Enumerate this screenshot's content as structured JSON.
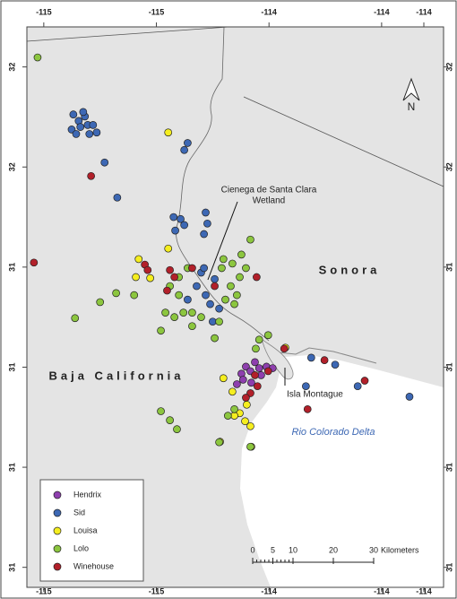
{
  "chart_data": {
    "type": "scatter",
    "xlim": [
      -115.06,
      -113.58
    ],
    "ylim": [
      30.76,
      31.88
    ],
    "xticks": [
      {
        "value": -115.0,
        "label": "-115"
      },
      {
        "value": -114.6,
        "label": "-115"
      },
      {
        "value": -114.2,
        "label": "-114"
      },
      {
        "value": -113.8,
        "label": "-114"
      },
      {
        "value": -113.65,
        "label": "-114"
      }
    ],
    "yticks": [
      {
        "value": 31.8,
        "label": "32"
      },
      {
        "value": 31.6,
        "label": "32"
      },
      {
        "value": 31.4,
        "label": "31"
      },
      {
        "value": 31.2,
        "label": "31"
      },
      {
        "value": 31.0,
        "label": "31"
      },
      {
        "value": 30.8,
        "label": "31"
      }
    ],
    "legend": "lower left",
    "series": [
      {
        "name": "Hendrix",
        "color": "#8e3fae",
        "x": [
          -114.282,
          -114.25,
          -114.298,
          -114.266,
          -114.235,
          -114.292,
          -114.263,
          -114.228,
          -114.209,
          -114.187,
          -114.314
        ],
        "y": [
          31.201,
          31.21,
          31.187,
          31.192,
          31.198,
          31.175,
          31.169,
          31.184,
          31.201,
          31.198,
          31.166
        ]
      },
      {
        "name": "Sid",
        "color": "#3d68b4",
        "x": [
          -114.895,
          -114.876,
          -114.854,
          -114.844,
          -114.87,
          -114.825,
          -114.901,
          -114.812,
          -114.885,
          -114.838,
          -114.86,
          -114.784,
          -114.739,
          -114.489,
          -114.501,
          -114.539,
          -114.514,
          -114.501,
          -114.533,
          -114.425,
          -114.419,
          -114.431,
          -114.441,
          -114.457,
          -114.425,
          -114.409,
          -114.377,
          -114.489,
          -114.393,
          -114.05,
          -113.965,
          -114.069,
          -113.885,
          -113.701,
          -114.4,
          -114.431
        ],
        "y": [
          31.705,
          31.692,
          31.701,
          31.684,
          31.68,
          31.684,
          31.675,
          31.669,
          31.666,
          31.666,
          31.71,
          31.609,
          31.539,
          31.648,
          31.634,
          31.5,
          31.496,
          31.484,
          31.473,
          31.509,
          31.487,
          31.466,
          31.389,
          31.362,
          31.344,
          31.326,
          31.317,
          31.335,
          31.376,
          31.219,
          31.205,
          31.162,
          31.162,
          31.141,
          31.291,
          31.398
        ]
      },
      {
        "name": "Louisa",
        "color": "#f5ee1f",
        "x": [
          -114.558,
          -114.663,
          -114.673,
          -114.622,
          -114.558,
          -114.362,
          -114.33,
          -114.279,
          -114.304,
          -114.323,
          -114.285,
          -114.266,
          -114.374,
          -114.263,
          -114.142
        ],
        "y": [
          31.669,
          31.416,
          31.38,
          31.378,
          31.437,
          31.178,
          31.151,
          31.125,
          31.108,
          31.103,
          31.092,
          31.082,
          31.051,
          31.041,
          31.239
        ]
      },
      {
        "name": "Lolo",
        "color": "#8cc63f",
        "x": [
          -115.022,
          -114.266,
          -114.298,
          -114.33,
          -114.362,
          -114.282,
          -114.304,
          -114.336,
          -114.355,
          -114.323,
          -114.377,
          -114.393,
          -114.743,
          -114.8,
          -114.889,
          -114.679,
          -114.552,
          -114.52,
          -114.568,
          -114.536,
          -114.504,
          -114.473,
          -114.584,
          -114.473,
          -114.441,
          -114.52,
          -114.489,
          -114.368,
          -114.314,
          -114.584,
          -114.552,
          -114.346,
          -114.323,
          -114.527,
          -114.377,
          -114.266,
          -114.235,
          -114.203,
          -114.247
        ],
        "y": [
          31.819,
          31.455,
          31.425,
          31.407,
          31.416,
          31.398,
          31.38,
          31.362,
          31.335,
          31.326,
          31.291,
          31.258,
          31.348,
          31.33,
          31.298,
          31.344,
          31.362,
          31.344,
          31.309,
          31.3,
          31.309,
          31.309,
          31.273,
          31.282,
          31.3,
          31.38,
          31.398,
          31.398,
          31.344,
          31.112,
          31.094,
          31.103,
          31.116,
          31.076,
          31.05,
          31.041,
          31.255,
          31.264,
          31.237
        ]
      },
      {
        "name": "Winehouse",
        "color": "#b2202a",
        "x": [
          -114.832,
          -115.035,
          -114.641,
          -114.631,
          -114.552,
          -114.536,
          -114.562,
          -114.473,
          -114.393,
          -114.244,
          -114.25,
          -114.241,
          -114.266,
          -114.282,
          -114.203,
          -114.003,
          -113.86,
          -114.063,
          -114.146
        ],
        "y": [
          31.582,
          31.409,
          31.405,
          31.394,
          31.394,
          31.38,
          31.353,
          31.398,
          31.362,
          31.38,
          31.184,
          31.162,
          31.148,
          31.139,
          31.192,
          31.214,
          31.173,
          31.116,
          31.237
        ]
      }
    ],
    "annotations": [
      {
        "text": [
          "Cienega de Santa Clara",
          "Wetland"
        ]
      },
      {
        "text": [
          "Sonora"
        ]
      },
      {
        "text": [
          "Baja California"
        ]
      },
      {
        "text": [
          "Isla Montague"
        ]
      },
      {
        "text": [
          "Rio Colorado Delta"
        ]
      }
    ],
    "north_arrow": "N",
    "scale_bar": {
      "ticks": [
        0,
        5,
        10,
        20,
        30
      ],
      "unit": "Kilometers"
    }
  }
}
